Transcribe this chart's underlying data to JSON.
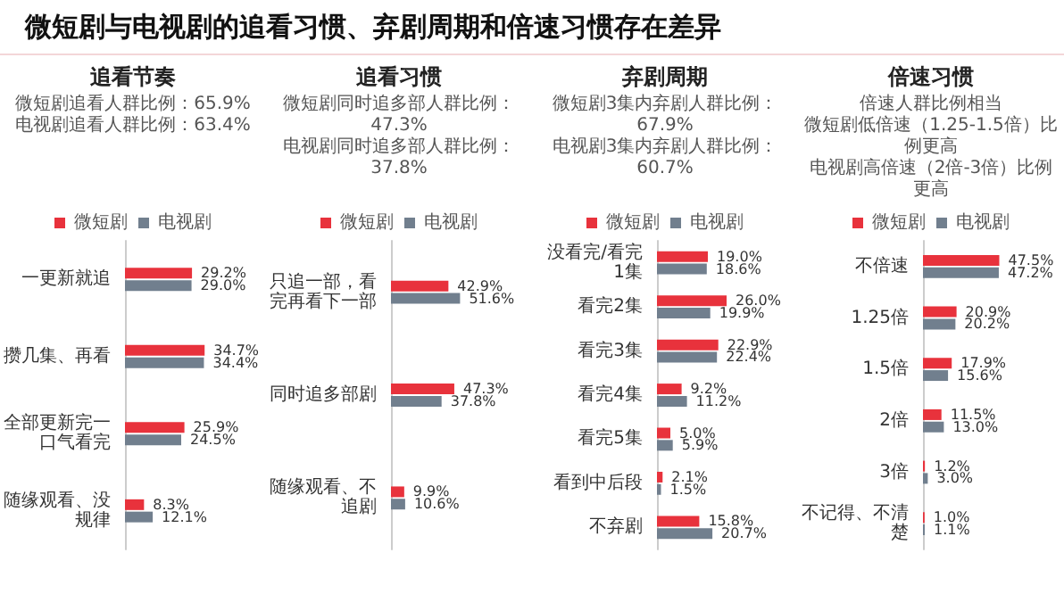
{
  "chart_data": [
    {
      "type": "other",
      "title": "微短剧与电视剧的追看习惯、弃剧周期和倍速习惯存在差异"
    },
    {
      "type": "bar",
      "orientation": "horizontal",
      "title": "追看节奏",
      "annotations": [
        "微短剧追看人群比例：65.9%",
        "电视剧追看人群比例：63.4%"
      ],
      "categories": [
        "一更新就追",
        "攒几集、再看",
        "全部更新完一口气看完",
        "随缘观看、没规律"
      ],
      "legend": "top",
      "series": [
        {
          "name": "微短剧",
          "color": "#e8323c",
          "values": [
            29.2,
            34.7,
            25.9,
            8.3
          ],
          "value_labels": [
            "29.2%",
            "34.7%",
            "25.9%",
            "8.3%"
          ]
        },
        {
          "name": "电视剧",
          "color": "#717f8e",
          "values": [
            29.0,
            34.4,
            24.5,
            12.1
          ],
          "value_labels": [
            "29.0%",
            "34.4%",
            "24.5%",
            "12.1%"
          ]
        }
      ]
    },
    {
      "type": "bar",
      "orientation": "horizontal",
      "title": "追看习惯",
      "annotations": [
        "微短剧同时追多部人群比例：47.3%",
        "电视剧同时追多部人群比例：37.8%"
      ],
      "categories": [
        "只追一部，看完再看下一部",
        "同时追多部剧",
        "随缘观看、不追剧"
      ],
      "legend": "top",
      "series": [
        {
          "name": "微短剧",
          "color": "#e8323c",
          "values": [
            42.9,
            47.3,
            9.9
          ],
          "value_labels": [
            "42.9%",
            "47.3%",
            "9.9%"
          ]
        },
        {
          "name": "电视剧",
          "color": "#717f8e",
          "values": [
            51.6,
            37.8,
            10.6
          ],
          "value_labels": [
            "51.6%",
            "37.8%",
            "10.6%"
          ]
        }
      ]
    },
    {
      "type": "bar",
      "orientation": "horizontal",
      "title": "弃剧周期",
      "annotations": [
        "微短剧3集内弃剧人群比例：67.9%",
        "电视剧3集内弃剧人群比例：60.7%"
      ],
      "categories": [
        "没看完/看完1集",
        "看完2集",
        "看完3集",
        "看完4集",
        "看完5集",
        "看到中后段",
        "不弃剧"
      ],
      "legend": "top",
      "series": [
        {
          "name": "微短剧",
          "color": "#e8323c",
          "values": [
            19.0,
            26.0,
            22.9,
            9.2,
            5.0,
            2.1,
            15.8
          ],
          "value_labels": [
            "19.0%",
            "26.0%",
            "22.9%",
            "9.2%",
            "5.0%",
            "2.1%",
            "15.8%"
          ]
        },
        {
          "name": "电视剧",
          "color": "#717f8e",
          "values": [
            18.6,
            19.9,
            22.4,
            11.2,
            5.9,
            1.5,
            20.7
          ],
          "value_labels": [
            "18.6%",
            "19.9%",
            "22.4%",
            "11.2%",
            "5.9%",
            "1.5%",
            "20.7%"
          ]
        }
      ]
    },
    {
      "type": "bar",
      "orientation": "horizontal",
      "title": "倍速习惯",
      "annotations": [
        "倍速人群比例相当",
        "微短剧低倍速（1.25-1.5倍）比例更高",
        "电视剧高倍速（2倍-3倍）比例更高"
      ],
      "categories": [
        "不倍速",
        "1.25倍",
        "1.5倍",
        "2倍",
        "3倍",
        "不记得、不清楚"
      ],
      "legend": "top",
      "series": [
        {
          "name": "微短剧",
          "color": "#e8323c",
          "values": [
            47.5,
            20.9,
            17.9,
            11.5,
            1.2,
            1.0
          ],
          "value_labels": [
            "47.5%",
            "20.9%",
            "17.9%",
            "11.5%",
            "1.2%",
            "1.0%"
          ]
        },
        {
          "name": "电视剧",
          "color": "#717f8e",
          "values": [
            47.2,
            20.2,
            15.6,
            13.0,
            3.0,
            1.1
          ],
          "value_labels": [
            "47.2%",
            "20.2%",
            "15.6%",
            "13.0%",
            "3.0%",
            "1.1%"
          ]
        }
      ]
    }
  ]
}
